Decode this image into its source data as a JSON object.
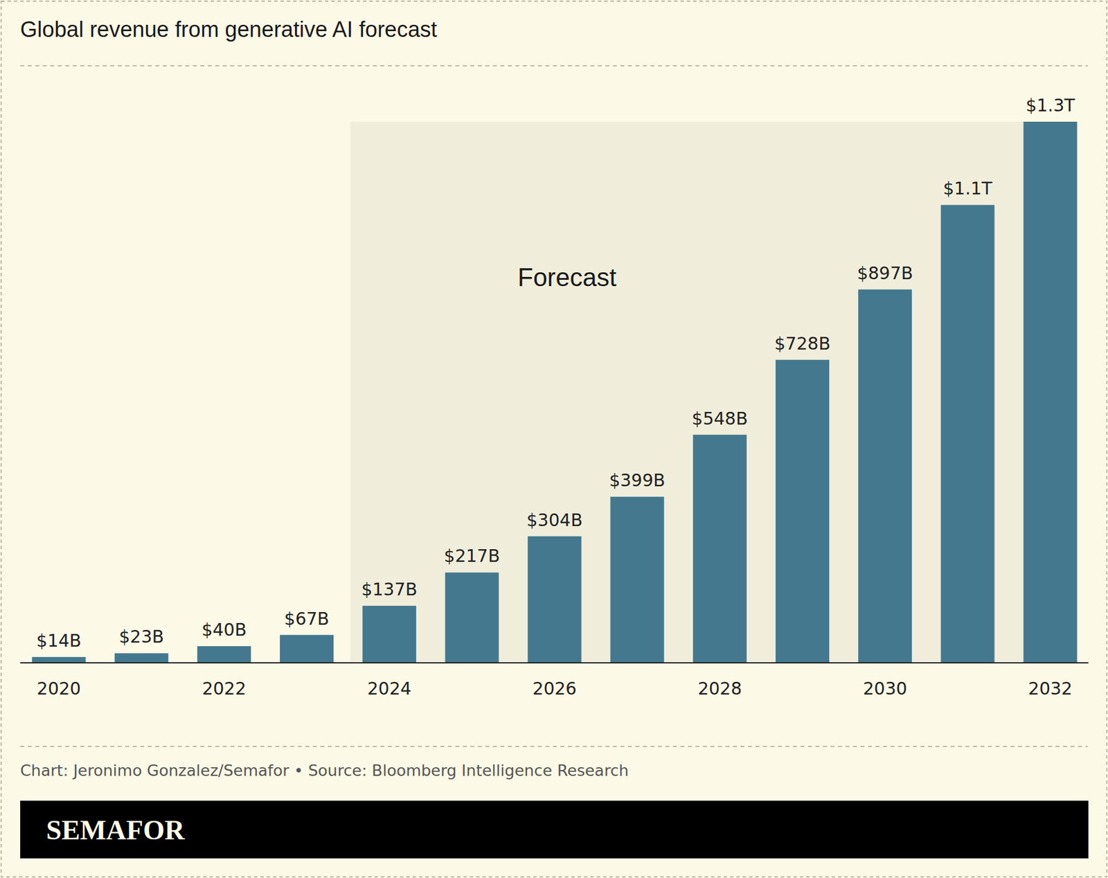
{
  "chart_data": {
    "type": "bar",
    "title": "Global revenue from generative AI forecast",
    "categories": [
      "2020",
      null,
      "2022",
      null,
      "2024",
      null,
      "2026",
      null,
      "2028",
      null,
      "2030",
      null,
      "2032"
    ],
    "values": [
      14,
      23,
      40,
      67,
      137,
      217,
      304,
      399,
      548,
      728,
      897,
      1100,
      1300
    ],
    "value_labels": [
      "$14B",
      "$23B",
      "$40B",
      "$67B",
      "$137B",
      "$217B",
      "$304B",
      "$399B",
      "$548B",
      "$728B",
      "$897B",
      "$1.1T",
      "$1.3T"
    ],
    "color": "#44788e",
    "ylim": [
      0,
      1300
    ],
    "grid": false,
    "data_labels": true,
    "tick_labels": "x",
    "annotations": [
      {
        "text": "Forecast",
        "x_from": "2024",
        "x_to": "2032"
      }
    ],
    "source": "Chart: Jeronimo Gonzalez/Semafor • Source: Bloomberg Intelligence Research",
    "brand": "SEMAFOR"
  }
}
